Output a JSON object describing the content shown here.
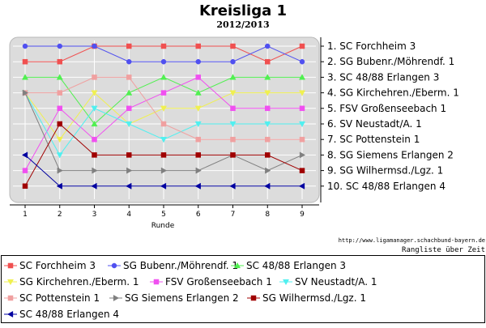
{
  "chart_data": {
    "type": "line",
    "title": "Kreisliga 1",
    "subtitle": "2012/2013",
    "xlabel": "Runde",
    "x": [
      1,
      2,
      3,
      4,
      5,
      6,
      7,
      8,
      9
    ],
    "ylim": [
      1,
      10
    ],
    "y_inverted": true,
    "grid": true,
    "legend_position": "bottom",
    "rank_labels": [
      "1. SC Forchheim 3",
      "2. SG Bubenr./Möhrendf. 1",
      "3. SC 48/88 Erlangen 3",
      "4. SG Kirchehren./Eberm. 1",
      "5. FSV Großenseebach 1",
      "6. SV Neustadt/A. 1",
      "7. SC Pottenstein 1",
      "8. SG Siemens Erlangen 2",
      "9. SG Wilhermsd./Lgz. 1",
      "10. SC 48/88 Erlangen 4"
    ],
    "series": [
      {
        "name": "SC Forchheim 3",
        "color": "#f05050",
        "marker": "square",
        "values": [
          2,
          2,
          1,
          1,
          1,
          1,
          1,
          2,
          1
        ]
      },
      {
        "name": "SG Bubenr./Möhrendf. 1",
        "color": "#5050f0",
        "marker": "circle",
        "values": [
          1,
          1,
          1,
          2,
          2,
          2,
          2,
          1,
          2
        ]
      },
      {
        "name": "SC 48/88 Erlangen 3",
        "color": "#50f050",
        "marker": "triangle-up",
        "values": [
          3,
          3,
          6,
          4,
          3,
          4,
          3,
          3,
          3
        ]
      },
      {
        "name": "SG Kirchehren./Eberm. 1",
        "color": "#f0f050",
        "marker": "triangle-down",
        "values": [
          4,
          7,
          4,
          6,
          5,
          5,
          4,
          4,
          4
        ]
      },
      {
        "name": "FSV Großenseebach 1",
        "color": "#f050f0",
        "marker": "square",
        "values": [
          9,
          5,
          7,
          5,
          4,
          3,
          5,
          5,
          5
        ]
      },
      {
        "name": "SV Neustadt/A. 1",
        "color": "#50f0f0",
        "marker": "triangle-down",
        "values": [
          4,
          8,
          5,
          6,
          7,
          6,
          6,
          6,
          6
        ]
      },
      {
        "name": "SC Pottenstein 1",
        "color": "#f0a0a0",
        "marker": "square",
        "values": [
          4,
          4,
          3,
          3,
          6,
          7,
          7,
          7,
          7
        ]
      },
      {
        "name": "SG Siemens Erlangen 2",
        "color": "#808080",
        "marker": "triangle-right",
        "values": [
          4,
          9,
          9,
          9,
          9,
          9,
          8,
          9,
          8
        ]
      },
      {
        "name": "SG Wilhermsd./Lgz. 1",
        "color": "#a00000",
        "marker": "square",
        "values": [
          10,
          6,
          8,
          8,
          8,
          8,
          8,
          8,
          9
        ]
      },
      {
        "name": "SC 48/88 Erlangen 4",
        "color": "#0000a0",
        "marker": "triangle-left",
        "values": [
          8,
          10,
          10,
          10,
          10,
          10,
          10,
          10,
          10
        ]
      }
    ]
  },
  "footer": {
    "url": "http://www.ligamanager.schachbund-bayern.de",
    "caption": "Rangliste über Zeit"
  }
}
